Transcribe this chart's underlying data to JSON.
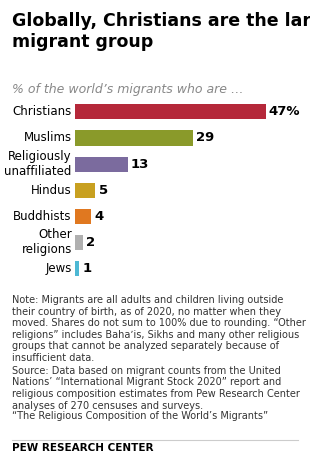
{
  "title": "Globally, Christians are the largest\nmigrant group",
  "subtitle": "% of the world’s migrants who are …",
  "categories": [
    "Christians",
    "Muslims",
    "Religiously\nunaffiliated",
    "Hindus",
    "Buddhists",
    "Other\nreligions",
    "Jews"
  ],
  "values": [
    47,
    29,
    13,
    5,
    4,
    2,
    1
  ],
  "bar_colors": [
    "#b5283a",
    "#8a9a2a",
    "#7b6b9e",
    "#c8a020",
    "#e07820",
    "#b0b0b0",
    "#4db8d4"
  ],
  "value_labels": [
    "47%",
    "29",
    "13",
    "5",
    "4",
    "2",
    "1"
  ],
  "note_line1": "Note: Migrants are all adults and children living outside their country of birth, as of 2020, no matter when they moved. Shares do not sum to 100% due to rounding. “Other religions” includes Bahaʼis, Sikhs and many other religious groups that cannot be analyzed separately because of insufficient data.",
  "note_line2": "Source: Data based on migrant counts from the United Nations’ “International Migrant Stock 2020” report and religious composition estimates from Pew Research Center analyses of 270 censuses and surveys.",
  "note_line3": "“The Religious Composition of the World’s Migrants”",
  "footer": "PEW RESEARCH CENTER",
  "xlim": [
    0,
    52
  ],
  "background_color": "#ffffff",
  "title_fontsize": 12.5,
  "subtitle_fontsize": 9,
  "label_fontsize": 8.5,
  "value_fontsize": 9.5,
  "note_fontsize": 7,
  "footer_fontsize": 7.5
}
